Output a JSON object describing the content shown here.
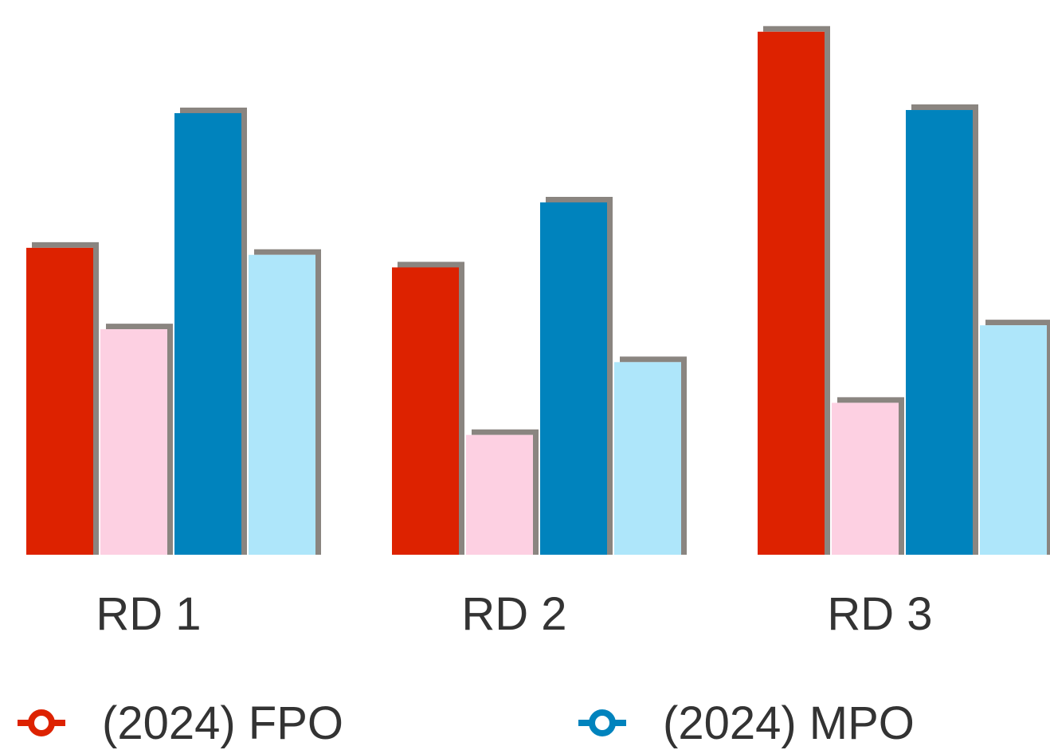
{
  "chart_data": {
    "type": "bar",
    "categories": [
      "RD 1",
      "RD 2",
      "RD 3"
    ],
    "series": [
      {
        "name": "(2024) FPO",
        "color": "#dd2200",
        "values": [
          392,
          367,
          668
        ],
        "in_legend": true
      },
      {
        "color": "#fdd0e2",
        "values": [
          288,
          153,
          194
        ],
        "in_legend": false
      },
      {
        "name": "(2024) MPO",
        "color": "#0083bd",
        "values": [
          564,
          450,
          568
        ],
        "in_legend": true
      },
      {
        "color": "#aee6fa",
        "values": [
          383,
          246,
          293
        ],
        "in_legend": false
      }
    ],
    "ylim": [
      0,
      680
    ],
    "grid": false,
    "legend_position": "bottom",
    "shadow_color": "#8a8580"
  }
}
